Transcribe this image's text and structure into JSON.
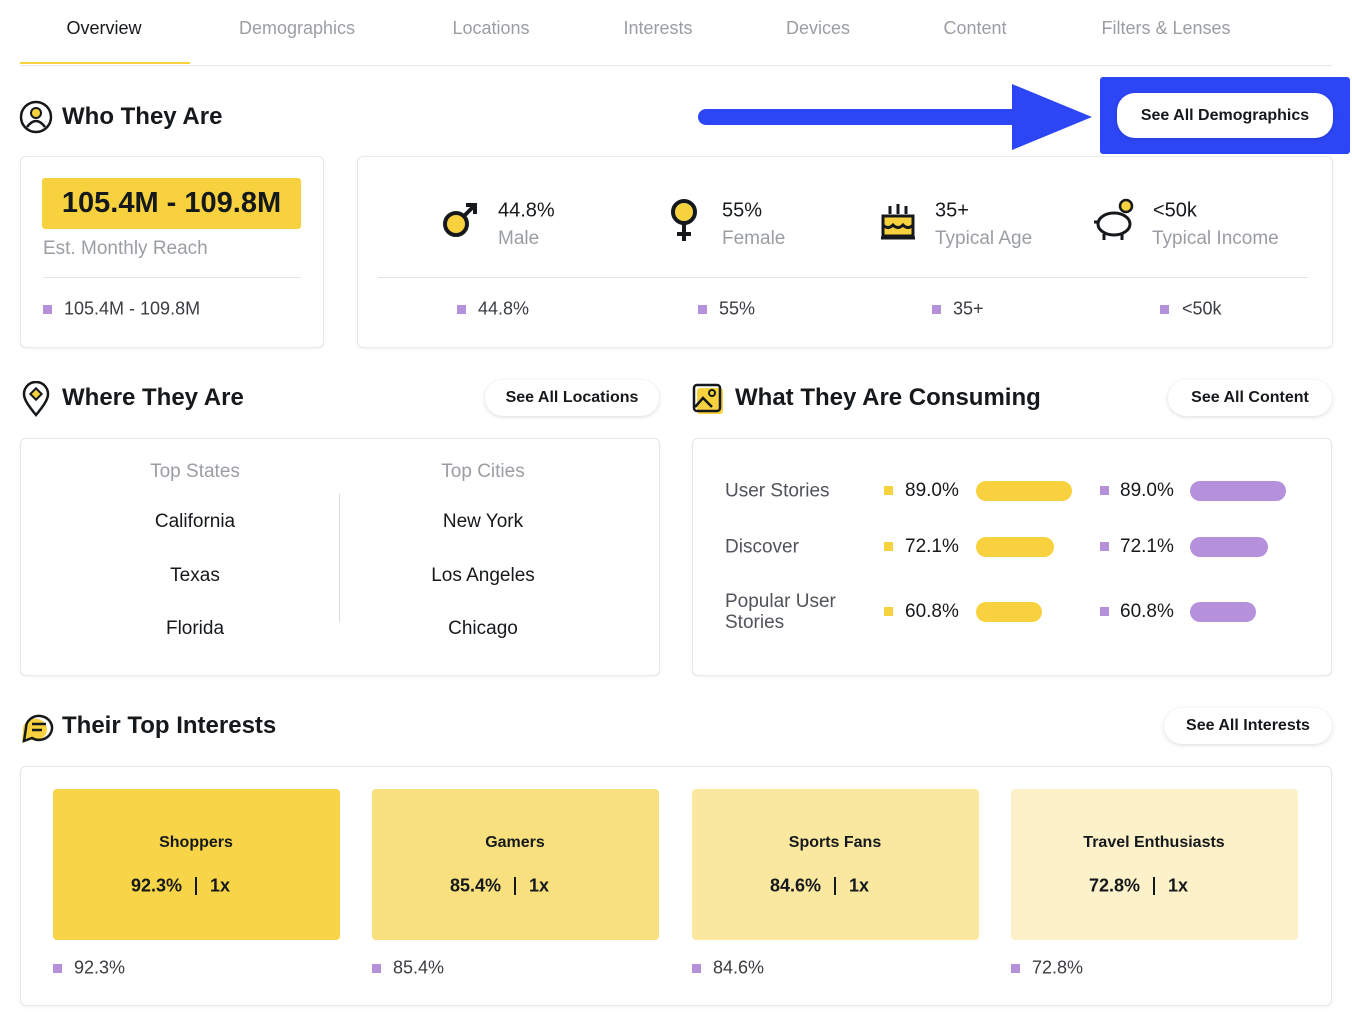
{
  "tabs": [
    "Overview",
    "Demographics",
    "Locations",
    "Interests",
    "Devices",
    "Content",
    "Filters & Lenses"
  ],
  "who": {
    "title": "Who They Are",
    "button": "See All Demographics",
    "reach": "105.4M - 109.8M",
    "reach_label": "Est. Monthly Reach",
    "stats": [
      {
        "value": "44.8%",
        "label": "Male"
      },
      {
        "value": "55%",
        "label": "Female"
      },
      {
        "value": "35+",
        "label": "Typical Age"
      },
      {
        "value": "<50k",
        "label": "Typical Income"
      }
    ]
  },
  "where": {
    "title": "Where They Are",
    "button": "See All Locations",
    "states_title": "Top States",
    "states": [
      "California",
      "Texas",
      "Florida"
    ],
    "cities_title": "Top Cities",
    "cities": [
      "New York",
      "Los Angeles",
      "Chicago"
    ]
  },
  "consuming": {
    "title": "What They Are Consuming",
    "button": "See All Content",
    "categories": [
      "User Stories",
      "Discover",
      "Popular User Stories"
    ],
    "values": [
      89.0,
      72.1,
      60.8
    ],
    "value_labels": [
      "89.0%",
      "72.1%",
      "60.8%"
    ],
    "compare_values": [
      89.0,
      72.1,
      60.8
    ],
    "compare_labels": [
      "89.0%",
      "72.1%",
      "60.8%"
    ]
  },
  "interests": {
    "title": "Their Top Interests",
    "button": "See All Interests",
    "items": [
      {
        "name": "Shoppers",
        "value": "92.3%",
        "index": "1x"
      },
      {
        "name": "Gamers",
        "value": "85.4%",
        "index": "1x"
      },
      {
        "name": "Sports Fans",
        "value": "84.6%",
        "index": "1x"
      },
      {
        "name": "Travel Enthusiasts",
        "value": "72.8%",
        "index": "1x"
      }
    ]
  }
}
